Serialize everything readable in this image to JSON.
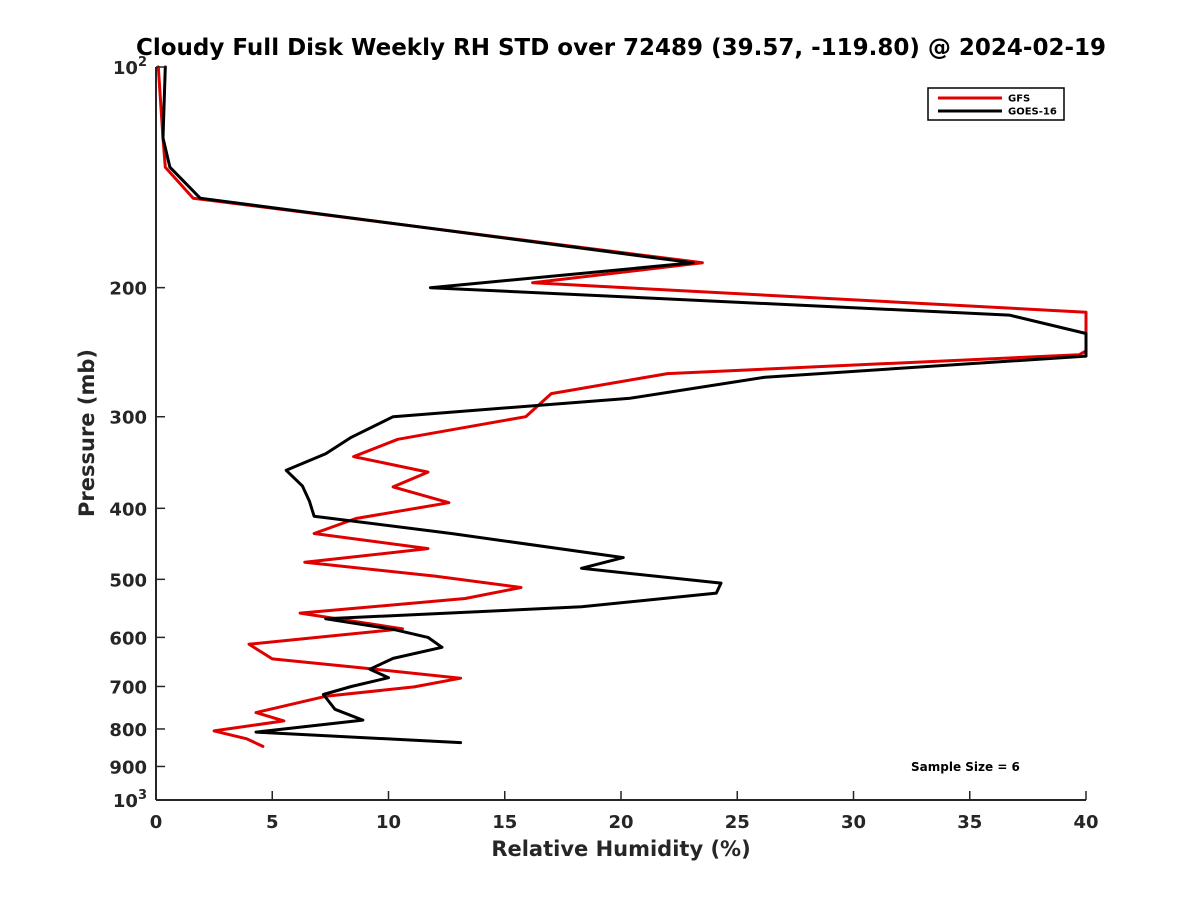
{
  "chart_data": {
    "type": "line",
    "title": "Cloudy Full Disk Weekly RH STD over 72489 (39.57, -119.80) @ 2024-02-19",
    "xlabel": "Relative Humidity (%)",
    "ylabel": "Pressure (mb)",
    "xlim": [
      0,
      40
    ],
    "ylim": [
      100,
      1000
    ],
    "y_scale": "log",
    "y_reversed": true,
    "x_ticks": [
      {
        "value": 0,
        "label": "0"
      },
      {
        "value": 5,
        "label": "5"
      },
      {
        "value": 10,
        "label": "10"
      },
      {
        "value": 15,
        "label": "15"
      },
      {
        "value": 20,
        "label": "20"
      },
      {
        "value": 25,
        "label": "25"
      },
      {
        "value": 30,
        "label": "30"
      },
      {
        "value": 35,
        "label": "35"
      },
      {
        "value": 40,
        "label": "40"
      }
    ],
    "y_ticks": [
      {
        "value": 100,
        "base": "10",
        "exp": "2"
      },
      {
        "value": 200,
        "base": "200",
        "exp": ""
      },
      {
        "value": 300,
        "base": "300",
        "exp": ""
      },
      {
        "value": 400,
        "base": "400",
        "exp": ""
      },
      {
        "value": 500,
        "base": "500",
        "exp": ""
      },
      {
        "value": 600,
        "base": "600",
        "exp": ""
      },
      {
        "value": 700,
        "base": "700",
        "exp": ""
      },
      {
        "value": 800,
        "base": "800",
        "exp": ""
      },
      {
        "value": 900,
        "base": "900",
        "exp": ""
      },
      {
        "value": 1000,
        "base": "10",
        "exp": "3"
      }
    ],
    "grid": false,
    "legend_position": "top-right",
    "annotation": "Sample Size = 6",
    "series": [
      {
        "name": "GFS",
        "color": "#e00000",
        "points": [
          [
            0.1,
            100
          ],
          [
            0.3,
            125
          ],
          [
            0.4,
            137
          ],
          [
            1.6,
            151
          ],
          [
            23.5,
            185
          ],
          [
            16.2,
            197
          ],
          [
            40,
            216
          ],
          [
            40,
            244
          ],
          [
            39.7,
            247
          ],
          [
            22,
            262
          ],
          [
            17,
            279
          ],
          [
            15.9,
            300
          ],
          [
            10.4,
            322
          ],
          [
            8.5,
            340
          ],
          [
            11.7,
            357
          ],
          [
            10.2,
            374
          ],
          [
            12.6,
            393
          ],
          [
            8.6,
            413
          ],
          [
            6.8,
            433
          ],
          [
            11.7,
            454
          ],
          [
            6.4,
            474
          ],
          [
            12,
            495
          ],
          [
            15.7,
            513
          ],
          [
            13.3,
            531
          ],
          [
            6.2,
            556
          ],
          [
            10.6,
            584
          ],
          [
            4,
            613
          ],
          [
            5,
            642
          ],
          [
            8.8,
            660
          ],
          [
            13.1,
            682
          ],
          [
            11.1,
            701
          ],
          [
            7.3,
            722
          ],
          [
            4.3,
            760
          ],
          [
            5.5,
            780
          ],
          [
            2.5,
            805
          ],
          [
            3.9,
            825
          ],
          [
            4.6,
            845
          ]
        ]
      },
      {
        "name": "GOES-16",
        "color": "#000000",
        "points": [
          [
            0.4,
            100
          ],
          [
            0.3,
            125
          ],
          [
            0.6,
            137
          ],
          [
            1.9,
            151
          ],
          [
            23.1,
            185
          ],
          [
            11.8,
            200
          ],
          [
            36.7,
            218
          ],
          [
            40,
            231
          ],
          [
            40,
            248
          ],
          [
            26.2,
            265
          ],
          [
            20.4,
            283
          ],
          [
            10.2,
            300
          ],
          [
            8.4,
            320
          ],
          [
            7.3,
            337
          ],
          [
            5.6,
            355
          ],
          [
            6.3,
            373
          ],
          [
            6.6,
            391
          ],
          [
            6.8,
            410
          ],
          [
            12.7,
            433
          ],
          [
            20.1,
            467
          ],
          [
            18.3,
            483
          ],
          [
            24.3,
            506
          ],
          [
            24.1,
            522
          ],
          [
            18.3,
            545
          ],
          [
            7.3,
            566
          ],
          [
            10.2,
            585
          ],
          [
            11.7,
            600
          ],
          [
            12.3,
            619
          ],
          [
            10.2,
            641
          ],
          [
            9.2,
            663
          ],
          [
            10,
            681
          ],
          [
            8.4,
            700
          ],
          [
            7.2,
            718
          ],
          [
            7.7,
            752
          ],
          [
            8.9,
            778
          ],
          [
            4.3,
            808
          ],
          [
            13.1,
            835
          ]
        ]
      }
    ]
  }
}
